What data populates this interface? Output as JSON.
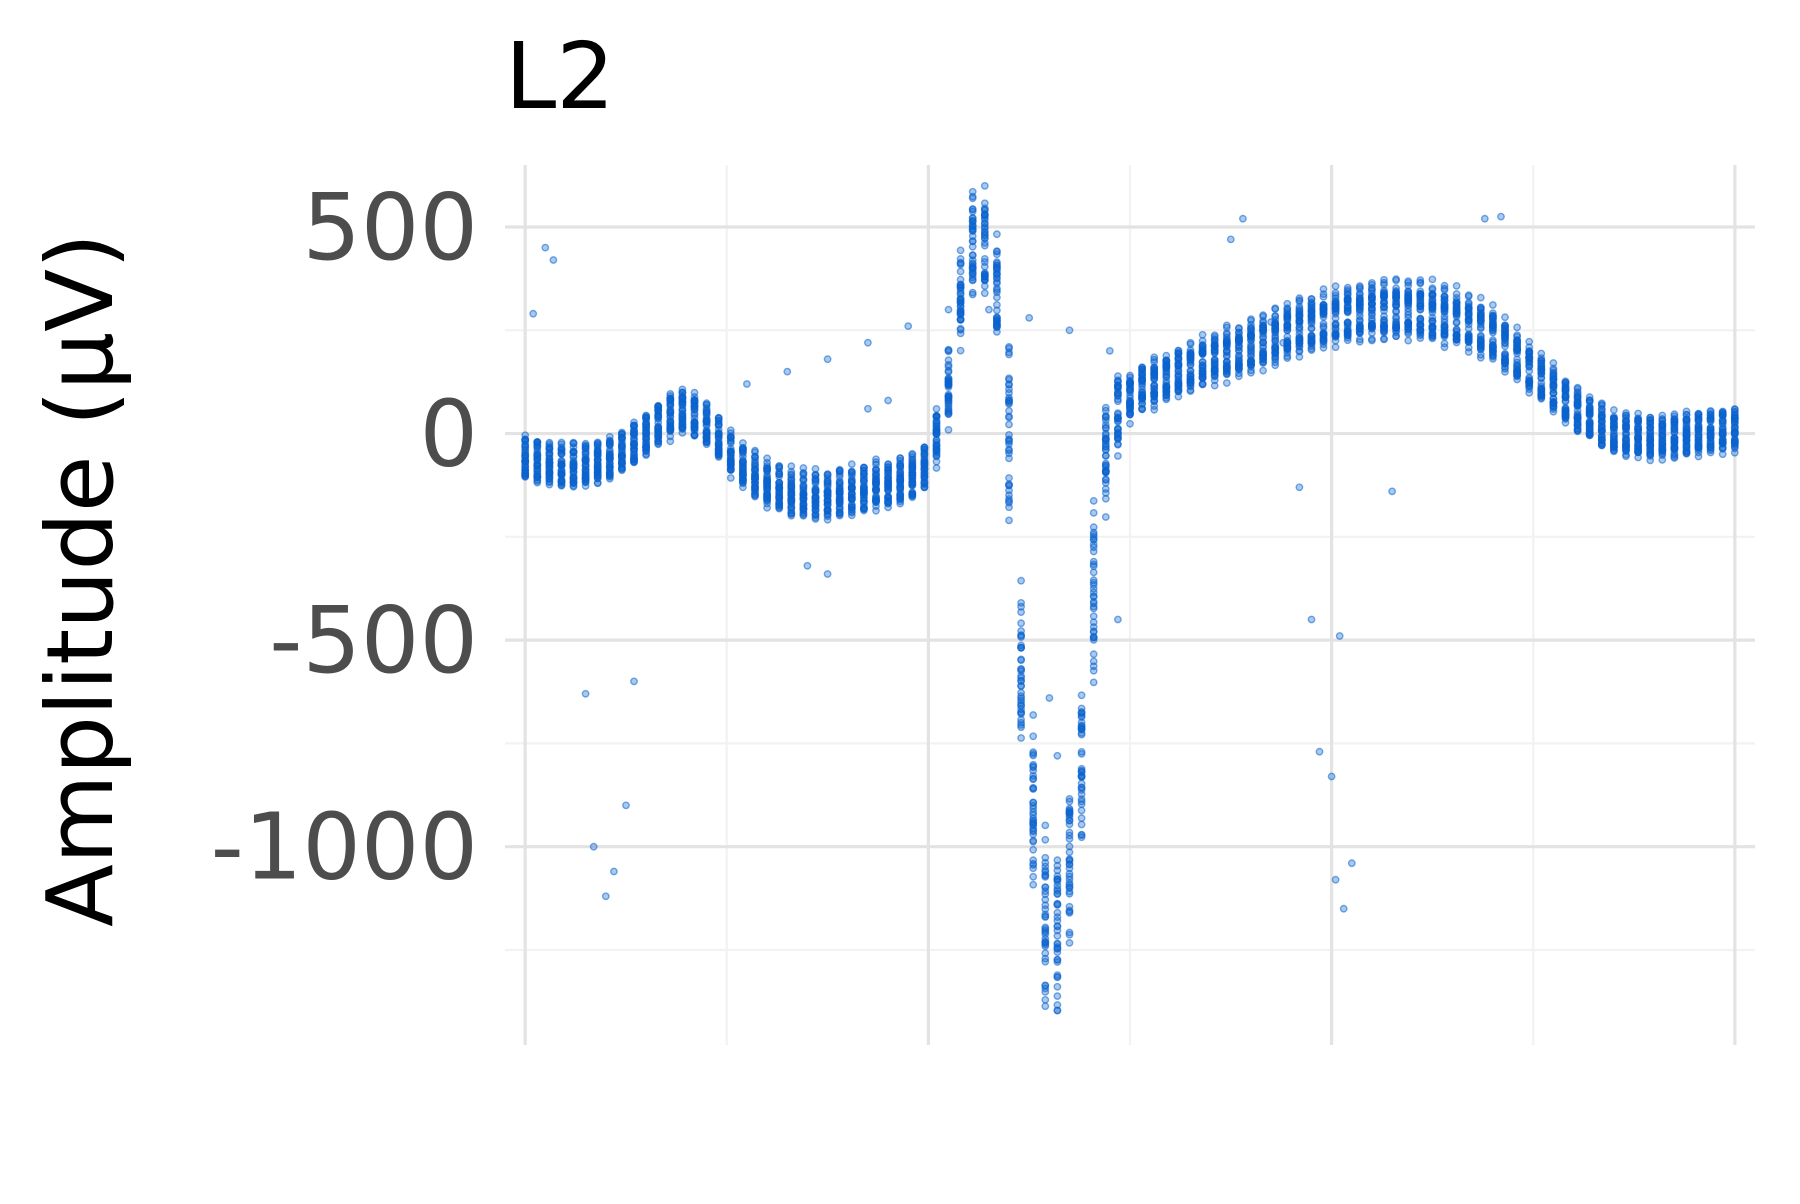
{
  "chart_data": {
    "type": "scatter",
    "title": "L2",
    "xlabel": "",
    "ylabel": "Amplitude (µV)",
    "ylim": [
      -1480,
      650
    ],
    "xlim": [
      -0.05,
      3.05
    ],
    "y_ticks": [
      500,
      0,
      -500,
      -1000
    ],
    "y_tick_labels": [
      "500",
      "0",
      "-500",
      "-1000"
    ],
    "x_ticks": [
      0,
      1,
      2,
      3
    ],
    "x_tick_labels": [],
    "grid": true,
    "legend": "none",
    "marker_color": "#0b63ce",
    "series": [
      {
        "points_per_beat": 100,
        "beats_overlaid": 40,
        "template": {
          "x": [
            0.0,
            0.05,
            0.1,
            0.15,
            0.2,
            0.25,
            0.3,
            0.35,
            0.4,
            0.45,
            0.47,
            0.5,
            0.55,
            0.6,
            0.65,
            0.7,
            0.75,
            0.8,
            0.85,
            0.95,
            1.0,
            1.05,
            1.08,
            1.1,
            1.13,
            1.15,
            1.18,
            1.2,
            1.22,
            1.24,
            1.26,
            1.28,
            1.3,
            1.33,
            1.36,
            1.38,
            1.4,
            1.42,
            1.44,
            1.46,
            1.48,
            1.5,
            1.52,
            1.55,
            1.6,
            1.65,
            1.7,
            1.8,
            1.9,
            2.0,
            2.1,
            2.2,
            2.3,
            2.4,
            2.5,
            2.6,
            2.7,
            2.8,
            2.9,
            3.0
          ],
          "y": [
            -60,
            -70,
            -80,
            -75,
            -65,
            -40,
            0,
            40,
            60,
            20,
            0,
            -40,
            -90,
            -120,
            -140,
            -150,
            -150,
            -140,
            -130,
            -110,
            -70,
            100,
            330,
            440,
            490,
            420,
            300,
            30,
            -450,
            -700,
            -900,
            -1080,
            -1250,
            -1150,
            -950,
            -800,
            -550,
            -200,
            -30,
            40,
            70,
            90,
            110,
            120,
            140,
            160,
            180,
            210,
            250,
            280,
            295,
            300,
            280,
            240,
            150,
            60,
            0,
            -10,
            0,
            10
          ]
        },
        "spread": 90
      }
    ],
    "outliers": [
      {
        "x": 0.02,
        "y": 290
      },
      {
        "x": 0.05,
        "y": 450
      },
      {
        "x": 0.07,
        "y": 420
      },
      {
        "x": 0.15,
        "y": -630
      },
      {
        "x": 0.17,
        "y": -1000
      },
      {
        "x": 0.2,
        "y": -1120
      },
      {
        "x": 0.22,
        "y": -1060
      },
      {
        "x": 0.25,
        "y": -900
      },
      {
        "x": 0.27,
        "y": -600
      },
      {
        "x": 0.7,
        "y": -320
      },
      {
        "x": 0.75,
        "y": -340
      },
      {
        "x": 0.85,
        "y": 60
      },
      {
        "x": 0.9,
        "y": 80
      },
      {
        "x": 1.75,
        "y": 470
      },
      {
        "x": 1.78,
        "y": 520
      },
      {
        "x": 1.85,
        "y": 270
      },
      {
        "x": 1.88,
        "y": 220
      },
      {
        "x": 1.92,
        "y": -130
      },
      {
        "x": 1.95,
        "y": -450
      },
      {
        "x": 1.97,
        "y": -770
      },
      {
        "x": 2.01,
        "y": -1080
      },
      {
        "x": 2.03,
        "y": -1150
      },
      {
        "x": 2.05,
        "y": -1040
      },
      {
        "x": 2.0,
        "y": -830
      },
      {
        "x": 2.02,
        "y": -490
      },
      {
        "x": 2.15,
        "y": -140
      },
      {
        "x": 2.38,
        "y": 520
      },
      {
        "x": 2.42,
        "y": 525
      },
      {
        "x": 1.3,
        "y": -640
      },
      {
        "x": 1.32,
        "y": -780
      },
      {
        "x": 1.47,
        "y": -450
      }
    ],
    "flat_trace": {
      "x": [
        0.55,
        0.65,
        0.75,
        0.85,
        0.95,
        1.05,
        1.15,
        1.25,
        1.35,
        1.45
      ],
      "y": [
        120,
        150,
        180,
        220,
        260,
        300,
        300,
        280,
        250,
        200
      ]
    }
  }
}
